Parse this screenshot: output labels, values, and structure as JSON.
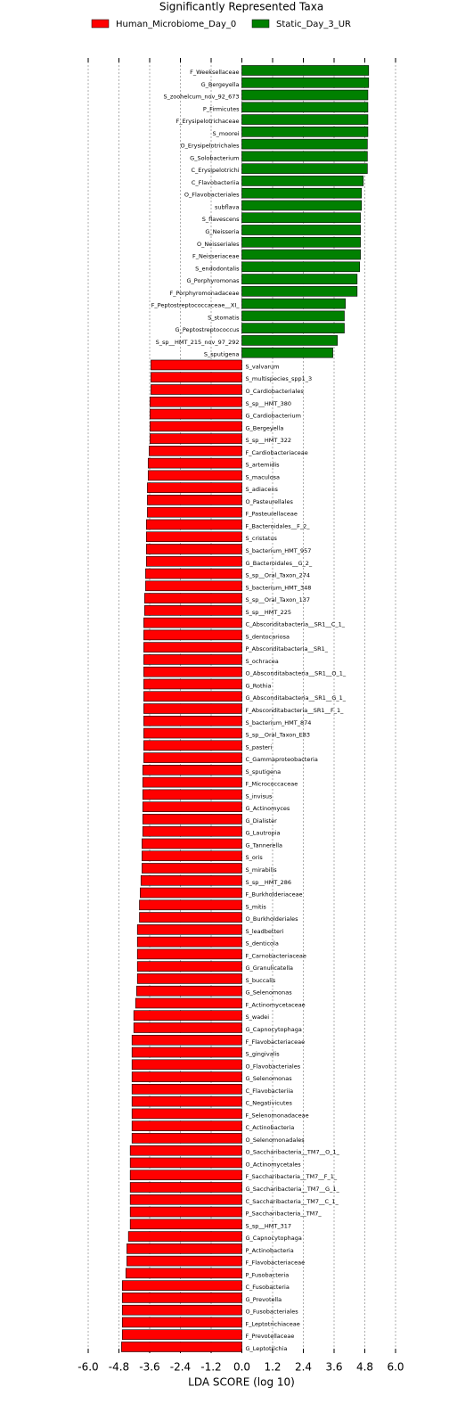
{
  "chart_data": {
    "type": "bar",
    "orientation": "horizontal",
    "title": "Significantly Represented Taxa",
    "x_label": "LDA SCORE (log 10)",
    "xlim": [
      -6,
      6
    ],
    "xticks": [
      {
        "value": -6,
        "label": "-6.0"
      },
      {
        "value": -4.8,
        "label": "-4.8"
      },
      {
        "value": -3.6,
        "label": "-3.6"
      },
      {
        "value": -2.4,
        "label": "-2.4"
      },
      {
        "value": -1.2,
        "label": "-1.2"
      },
      {
        "value": 0,
        "label": "0.0"
      },
      {
        "value": 1.2,
        "label": "1.2"
      },
      {
        "value": 2.4,
        "label": "2.4"
      },
      {
        "value": 3.6,
        "label": "3.6"
      },
      {
        "value": 4.8,
        "label": "4.8"
      },
      {
        "value": 6,
        "label": "6.0"
      }
    ],
    "grid": true,
    "series": [
      {
        "name": "Human_Microbiome_Day_0",
        "color": "#ff0000",
        "categories": [
          "S_valvarum",
          "S_multispecies_spp1_3",
          "O_Cardiobacteriales",
          "S_sp__HMT_380",
          "G_Cardiobacterium",
          "G_Bergeyella",
          "S_sp__HMT_322",
          "F_Cardiobacteriaceae",
          "S_artemidis",
          "S_maculosa",
          "S_adiacens",
          "O_Pasteurellales",
          "F_Pasteurellaceae",
          "F_Bacteroidales__F_2_",
          "S_cristatus",
          "S_bacterium_HMT_957",
          "G_Bacteroidales__G_2_",
          "S_sp__Oral_Taxon_274",
          "S_bacterium_HMT_348",
          "S_sp__Oral_Taxon_137",
          "S_sp__HMT_225",
          "C_Absconditabacteria__SR1__C_1_",
          "S_dentocariosa",
          "P_Absconditabacteria__SR1_",
          "S_ochracea",
          "O_Absconditabacteria__SR1__O_1_",
          "G_Rothia",
          "G_Absconditabacteria__SR1__G_1_",
          "F_Absconditabacteria__SR1__F_1_",
          "S_bacterium_HMT_874",
          "S_sp__Oral_Taxon_E83",
          "S_pasteri",
          "C_Gammaproteobacteria",
          "S_sputigena",
          "F_Micrococcaceae",
          "S_invisus",
          "G_Actinomyces",
          "G_Dialister",
          "G_Lautropia",
          "G_Tannerella",
          "S_oris",
          "S_mirabilis",
          "S_sp__HMT_286",
          "F_Burkholderiaceae",
          "S_mitis",
          "O_Burkholderiales",
          "S_leadbetteri",
          "S_denticola",
          "F_Carnobacteriaceae",
          "G_Granulicatella",
          "S_buccalis",
          "G_Selenomonas",
          "F_Actinomycetaceae",
          "S_wadei",
          "G_Capnocytophaga",
          "F_Flavobacteriaceae",
          "S_gingivalis",
          "O_Flavobacteriales",
          "G_Selenomonas",
          "C_Flavobacteriia",
          "C_Negativicutes",
          "F_Selenomonadaceae",
          "C_Actinobacteria",
          "O_Selenomonadales",
          "O_Saccharibacteria__TM7__O_1_",
          "O_Actinomycetales",
          "F_Saccharibacteria__TM7__F_1_",
          "G_Saccharibacteria__TM7__G_1_",
          "C_Saccharibacteria__TM7__C_1_",
          "P_Saccharibacteria__TM7_",
          "S_sp__HMT_317",
          "G_Capnocytophaga",
          "P_Actinobacteria",
          "F_Flavobacteriaceae",
          "P_Fusobacteria",
          "C_Fusobacteria",
          "G_Prevotella",
          "O_Fusobacteriales",
          "F_Leptotrichiaceae",
          "F_Prevotellaceae",
          "G_Leptotrichia"
        ],
        "values": [
          -3.55,
          -3.55,
          -3.55,
          -3.59,
          -3.59,
          -3.59,
          -3.59,
          -3.62,
          -3.66,
          -3.66,
          -3.69,
          -3.69,
          -3.69,
          -3.73,
          -3.73,
          -3.73,
          -3.73,
          -3.76,
          -3.76,
          -3.8,
          -3.8,
          -3.83,
          -3.83,
          -3.83,
          -3.83,
          -3.83,
          -3.83,
          -3.83,
          -3.83,
          -3.83,
          -3.83,
          -3.83,
          -3.83,
          -3.87,
          -3.87,
          -3.87,
          -3.87,
          -3.87,
          -3.87,
          -3.9,
          -3.9,
          -3.9,
          -3.94,
          -3.97,
          -4.0,
          -4.0,
          -4.08,
          -4.08,
          -4.08,
          -4.08,
          -4.08,
          -4.11,
          -4.15,
          -4.22,
          -4.22,
          -4.29,
          -4.29,
          -4.29,
          -4.29,
          -4.29,
          -4.29,
          -4.29,
          -4.29,
          -4.29,
          -4.36,
          -4.36,
          -4.36,
          -4.36,
          -4.36,
          -4.36,
          -4.36,
          -4.43,
          -4.49,
          -4.49,
          -4.53,
          -4.67,
          -4.67,
          -4.67,
          -4.67,
          -4.67,
          -4.7
        ]
      },
      {
        "name": "Static_Day_3_UR",
        "color": "#008000",
        "categories": [
          "F_Weeksellaceae",
          "G_Bergeyella",
          "S_zoohelcum_nov_92_673",
          "P_Firmicutes",
          "F_Erysipelotrichaceae",
          "S_moorei",
          "O_Erysipelotrichales",
          "G_Solobacterium",
          "C_Erysipelotrichi",
          "C_Flavobacteriia",
          "O_Flavobacteriales",
          "subflava",
          "S_flavescens",
          "G_Neisseria",
          "O_Neisseriales",
          "F_Neisseriaceae",
          "S_endodontalis",
          "G_Porphyromonas",
          "F_Porphyromonadaceae",
          "F_Peptostreptococcaceae__XI_",
          "S_stomatis",
          "G_Peptostreptococcus",
          "S_sp__HMT_215_nov_97_292",
          "S_sputigena"
        ],
        "values": [
          4.95,
          4.95,
          4.92,
          4.92,
          4.92,
          4.92,
          4.9,
          4.9,
          4.9,
          4.74,
          4.67,
          4.67,
          4.63,
          4.63,
          4.63,
          4.63,
          4.6,
          4.5,
          4.5,
          4.04,
          4.0,
          4.0,
          3.73,
          3.55
        ]
      }
    ]
  }
}
